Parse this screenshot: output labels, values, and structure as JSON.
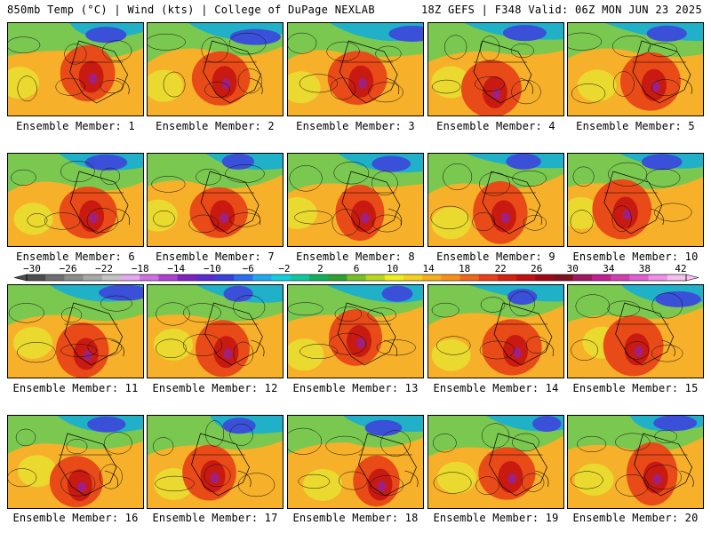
{
  "header": {
    "left": "850mb Temp (°C) | Wind (kts) | College of DuPage NEXLAB",
    "right": "18Z GEFS | F348 Valid: 06Z MON JUN 23 2025"
  },
  "members": [
    {
      "caption": "Ensemble Member: 1"
    },
    {
      "caption": "Ensemble Member: 2"
    },
    {
      "caption": "Ensemble Member: 3"
    },
    {
      "caption": "Ensemble Member: 4"
    },
    {
      "caption": "Ensemble Member: 5"
    },
    {
      "caption": "Ensemble Member: 6"
    },
    {
      "caption": "Ensemble Member: 7"
    },
    {
      "caption": "Ensemble Member: 8"
    },
    {
      "caption": "Ensemble Member: 9"
    },
    {
      "caption": "Ensemble Member: 10"
    },
    {
      "caption": "Ensemble Member: 11"
    },
    {
      "caption": "Ensemble Member: 12"
    },
    {
      "caption": "Ensemble Member: 13"
    },
    {
      "caption": "Ensemble Member: 14"
    },
    {
      "caption": "Ensemble Member: 15"
    },
    {
      "caption": "Ensemble Member: 16"
    },
    {
      "caption": "Ensemble Member: 17"
    },
    {
      "caption": "Ensemble Member: 18"
    },
    {
      "caption": "Ensemble Member: 19"
    },
    {
      "caption": "Ensemble Member: 20"
    }
  ],
  "colorbar": {
    "labels": [
      "−30",
      "−26",
      "−22",
      "−18",
      "−14",
      "−10",
      "−6",
      "−2",
      "2",
      "6",
      "10",
      "14",
      "18",
      "22",
      "26",
      "30",
      "34",
      "38",
      "42"
    ],
    "colors": [
      "#4d4d4d",
      "#6e6e6e",
      "#8c8c8c",
      "#a8a8a8",
      "#c4c4c4",
      "#e6a8f0",
      "#d070e0",
      "#b040d0",
      "#8020c0",
      "#5a2ad0",
      "#3a40e0",
      "#2a70f0",
      "#20a8f0",
      "#10d0e0",
      "#10c8a0",
      "#10b060",
      "#30a030",
      "#78c028",
      "#b8d820",
      "#f0f020",
      "#f8d020",
      "#f8b018",
      "#f89018",
      "#f06818",
      "#e84018",
      "#d82010",
      "#c01010",
      "#a00818",
      "#801020",
      "#a01860",
      "#c02090",
      "#d040b0",
      "#e060d0",
      "#f090e8",
      "#f8c0f0"
    ]
  }
}
